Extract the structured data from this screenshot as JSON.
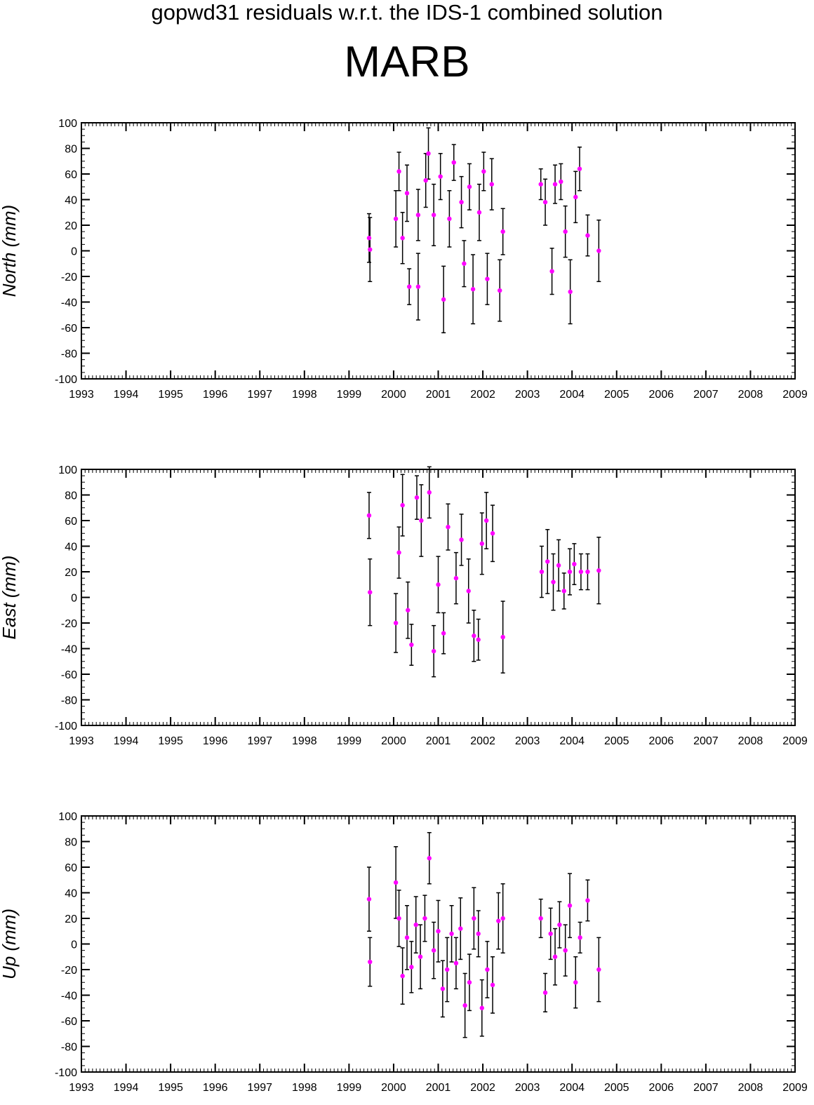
{
  "header": {
    "title": "gopwd31 residuals w.r.t. the IDS-1 combined solution",
    "station": "MARB"
  },
  "colors": {
    "marker": "#ff00ff",
    "errorbar": "#000000",
    "axis": "#000000"
  },
  "chart_data": [
    {
      "type": "scatter",
      "ylabel": "North (mm)",
      "xlim": [
        1993,
        2009
      ],
      "ylim": [
        -100,
        100
      ],
      "x_ticks": [
        1993,
        1994,
        1995,
        1996,
        1997,
        1998,
        1999,
        2000,
        2001,
        2002,
        2003,
        2004,
        2005,
        2006,
        2007,
        2008,
        2009
      ],
      "y_ticks": [
        -100,
        -80,
        -60,
        -40,
        -20,
        0,
        20,
        40,
        60,
        80,
        100
      ],
      "grid": false,
      "error_bars": true,
      "series": [
        {
          "points": [
            {
              "x": 1999.45,
              "y": 10,
              "err": 19
            },
            {
              "x": 1999.47,
              "y": 1,
              "err": 25
            },
            {
              "x": 2000.05,
              "y": 25,
              "err": 22
            },
            {
              "x": 2000.12,
              "y": 62,
              "err": 15
            },
            {
              "x": 2000.2,
              "y": 10,
              "err": 20
            },
            {
              "x": 2000.3,
              "y": 45,
              "err": 22
            },
            {
              "x": 2000.35,
              "y": -28,
              "err": 14
            },
            {
              "x": 2000.55,
              "y": 28,
              "err": 20
            },
            {
              "x": 2000.55,
              "y": -28,
              "err": 26
            },
            {
              "x": 2000.72,
              "y": 55,
              "err": 21
            },
            {
              "x": 2000.78,
              "y": 76,
              "err": 20
            },
            {
              "x": 2000.9,
              "y": 28,
              "err": 24
            },
            {
              "x": 2001.05,
              "y": 58,
              "err": 18
            },
            {
              "x": 2001.12,
              "y": -38,
              "err": 26
            },
            {
              "x": 2001.25,
              "y": 25,
              "err": 22
            },
            {
              "x": 2001.35,
              "y": 69,
              "err": 14
            },
            {
              "x": 2001.52,
              "y": 38,
              "err": 20
            },
            {
              "x": 2001.58,
              "y": -10,
              "err": 18
            },
            {
              "x": 2001.7,
              "y": 50,
              "err": 18
            },
            {
              "x": 2001.78,
              "y": -30,
              "err": 27
            },
            {
              "x": 2001.92,
              "y": 30,
              "err": 22
            },
            {
              "x": 2002.02,
              "y": 62,
              "err": 15
            },
            {
              "x": 2002.1,
              "y": -22,
              "err": 20
            },
            {
              "x": 2002.2,
              "y": 52,
              "err": 20
            },
            {
              "x": 2002.38,
              "y": -31,
              "err": 24
            },
            {
              "x": 2002.45,
              "y": 15,
              "err": 18
            },
            {
              "x": 2003.3,
              "y": 52,
              "err": 12
            },
            {
              "x": 2003.4,
              "y": 38,
              "err": 18
            },
            {
              "x": 2003.55,
              "y": -16,
              "err": 18
            },
            {
              "x": 2003.62,
              "y": 52,
              "err": 15
            },
            {
              "x": 2003.75,
              "y": 54,
              "err": 14
            },
            {
              "x": 2003.85,
              "y": 15,
              "err": 20
            },
            {
              "x": 2003.96,
              "y": -32,
              "err": 25
            },
            {
              "x": 2004.08,
              "y": 42,
              "err": 20
            },
            {
              "x": 2004.17,
              "y": 64,
              "err": 17
            },
            {
              "x": 2004.35,
              "y": 12,
              "err": 16
            },
            {
              "x": 2004.6,
              "y": 0,
              "err": 24
            }
          ]
        }
      ]
    },
    {
      "type": "scatter",
      "ylabel": "East (mm)",
      "xlim": [
        1993,
        2009
      ],
      "ylim": [
        -100,
        100
      ],
      "x_ticks": [
        1993,
        1994,
        1995,
        1996,
        1997,
        1998,
        1999,
        2000,
        2001,
        2002,
        2003,
        2004,
        2005,
        2006,
        2007,
        2008,
        2009
      ],
      "y_ticks": [
        -100,
        -80,
        -60,
        -40,
        -20,
        0,
        20,
        40,
        60,
        80,
        100
      ],
      "grid": false,
      "error_bars": true,
      "series": [
        {
          "points": [
            {
              "x": 1999.45,
              "y": 64,
              "err": 18
            },
            {
              "x": 1999.47,
              "y": 4,
              "err": 26
            },
            {
              "x": 2000.05,
              "y": -20,
              "err": 23
            },
            {
              "x": 2000.12,
              "y": 35,
              "err": 20
            },
            {
              "x": 2000.2,
              "y": 72,
              "err": 24
            },
            {
              "x": 2000.32,
              "y": -10,
              "err": 22
            },
            {
              "x": 2000.4,
              "y": -37,
              "err": 16
            },
            {
              "x": 2000.52,
              "y": 78,
              "err": 17
            },
            {
              "x": 2000.62,
              "y": 60,
              "err": 28
            },
            {
              "x": 2000.8,
              "y": 82,
              "err": 20
            },
            {
              "x": 2000.9,
              "y": -42,
              "err": 20
            },
            {
              "x": 2001.0,
              "y": 10,
              "err": 22
            },
            {
              "x": 2001.12,
              "y": -28,
              "err": 16
            },
            {
              "x": 2001.22,
              "y": 55,
              "err": 18
            },
            {
              "x": 2001.4,
              "y": 15,
              "err": 20
            },
            {
              "x": 2001.52,
              "y": 45,
              "err": 20
            },
            {
              "x": 2001.68,
              "y": 5,
              "err": 25
            },
            {
              "x": 2001.8,
              "y": -30,
              "err": 20
            },
            {
              "x": 2001.9,
              "y": -33,
              "err": 16
            },
            {
              "x": 2001.98,
              "y": 42,
              "err": 24
            },
            {
              "x": 2002.08,
              "y": 60,
              "err": 22
            },
            {
              "x": 2002.22,
              "y": 50,
              "err": 22
            },
            {
              "x": 2002.45,
              "y": -31,
              "err": 28
            },
            {
              "x": 2003.32,
              "y": 20,
              "err": 20
            },
            {
              "x": 2003.45,
              "y": 28,
              "err": 25
            },
            {
              "x": 2003.58,
              "y": 12,
              "err": 22
            },
            {
              "x": 2003.7,
              "y": 25,
              "err": 20
            },
            {
              "x": 2003.82,
              "y": 5,
              "err": 14
            },
            {
              "x": 2003.95,
              "y": 20,
              "err": 18
            },
            {
              "x": 2004.05,
              "y": 26,
              "err": 16
            },
            {
              "x": 2004.2,
              "y": 20,
              "err": 14
            },
            {
              "x": 2004.35,
              "y": 20,
              "err": 14
            },
            {
              "x": 2004.6,
              "y": 21,
              "err": 26
            }
          ]
        }
      ]
    },
    {
      "type": "scatter",
      "ylabel": "Up (mm)",
      "xlim": [
        1993,
        2009
      ],
      "ylim": [
        -100,
        100
      ],
      "x_ticks": [
        1993,
        1994,
        1995,
        1996,
        1997,
        1998,
        1999,
        2000,
        2001,
        2002,
        2003,
        2004,
        2005,
        2006,
        2007,
        2008,
        2009
      ],
      "y_ticks": [
        -100,
        -80,
        -60,
        -40,
        -20,
        0,
        20,
        40,
        60,
        80,
        100
      ],
      "grid": false,
      "error_bars": true,
      "series": [
        {
          "points": [
            {
              "x": 1999.45,
              "y": 35,
              "err": 25
            },
            {
              "x": 1999.47,
              "y": -14,
              "err": 19
            },
            {
              "x": 2000.05,
              "y": 48,
              "err": 28
            },
            {
              "x": 2000.12,
              "y": 20,
              "err": 22
            },
            {
              "x": 2000.2,
              "y": -25,
              "err": 22
            },
            {
              "x": 2000.3,
              "y": 5,
              "err": 25
            },
            {
              "x": 2000.4,
              "y": -18,
              "err": 20
            },
            {
              "x": 2000.5,
              "y": 15,
              "err": 22
            },
            {
              "x": 2000.6,
              "y": -10,
              "err": 25
            },
            {
              "x": 2000.7,
              "y": 20,
              "err": 18
            },
            {
              "x": 2000.8,
              "y": 67,
              "err": 20
            },
            {
              "x": 2000.9,
              "y": -5,
              "err": 22
            },
            {
              "x": 2001.0,
              "y": 10,
              "err": 24
            },
            {
              "x": 2001.1,
              "y": -35,
              "err": 22
            },
            {
              "x": 2001.2,
              "y": -20,
              "err": 25
            },
            {
              "x": 2001.3,
              "y": 8,
              "err": 22
            },
            {
              "x": 2001.4,
              "y": -15,
              "err": 20
            },
            {
              "x": 2001.5,
              "y": 12,
              "err": 24
            },
            {
              "x": 2001.6,
              "y": -48,
              "err": 25
            },
            {
              "x": 2001.7,
              "y": -30,
              "err": 22
            },
            {
              "x": 2001.8,
              "y": 20,
              "err": 24
            },
            {
              "x": 2001.9,
              "y": 8,
              "err": 18
            },
            {
              "x": 2001.98,
              "y": -50,
              "err": 22
            },
            {
              "x": 2002.1,
              "y": -20,
              "err": 22
            },
            {
              "x": 2002.22,
              "y": -32,
              "err": 22
            },
            {
              "x": 2002.35,
              "y": 18,
              "err": 22
            },
            {
              "x": 2002.45,
              "y": 20,
              "err": 27
            },
            {
              "x": 2003.3,
              "y": 20,
              "err": 15
            },
            {
              "x": 2003.4,
              "y": -38,
              "err": 15
            },
            {
              "x": 2003.52,
              "y": 8,
              "err": 20
            },
            {
              "x": 2003.62,
              "y": -10,
              "err": 22
            },
            {
              "x": 2003.72,
              "y": 15,
              "err": 18
            },
            {
              "x": 2003.85,
              "y": -5,
              "err": 20
            },
            {
              "x": 2003.95,
              "y": 30,
              "err": 25
            },
            {
              "x": 2004.08,
              "y": -30,
              "err": 20
            },
            {
              "x": 2004.18,
              "y": 5,
              "err": 12
            },
            {
              "x": 2004.35,
              "y": 34,
              "err": 16
            },
            {
              "x": 2004.6,
              "y": -20,
              "err": 25
            }
          ]
        }
      ]
    }
  ]
}
